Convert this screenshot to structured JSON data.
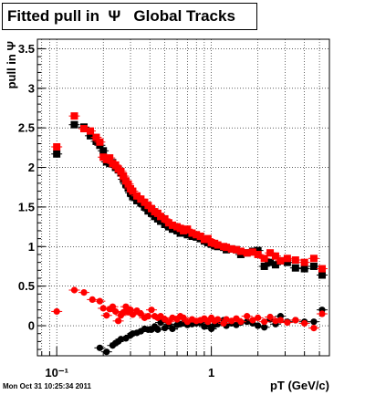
{
  "title": "Fitted pull in  Ψ   Global Tracks",
  "timestamp": "Mon Oct 31 10:25:34 2011",
  "chart_data": {
    "type": "scatter",
    "title": "Fitted pull in  Ψ   Global Tracks",
    "xlabel": "pT (GeV/c)",
    "ylabel": "pull in Ψ",
    "xscale": "log",
    "xlim": [
      0.075,
      5.8
    ],
    "ylim": [
      -0.38,
      3.62
    ],
    "grid": true,
    "xticks_major": [
      {
        "v": 0.1,
        "label": "10⁻¹"
      },
      {
        "v": 1,
        "label": "1"
      }
    ],
    "yticks_major": [
      0,
      0.5,
      1,
      1.5,
      2,
      2.5,
      3,
      3.5
    ],
    "ytick_labels": [
      "0",
      "0.5",
      "1",
      "1.5",
      "2",
      "2.5",
      "3",
      "3.5"
    ],
    "series": [
      {
        "color": "#000000",
        "marker": "square",
        "points": [
          [
            0.1,
            2.17
          ],
          [
            0.13,
            2.54
          ],
          [
            0.15,
            2.51
          ],
          [
            0.165,
            2.4
          ],
          [
            0.18,
            2.33
          ],
          [
            0.19,
            2.28
          ],
          [
            0.2,
            2.21
          ],
          [
            0.21,
            2.07
          ],
          [
            0.22,
            2.05
          ],
          [
            0.23,
            2.06
          ],
          [
            0.24,
            2.0
          ],
          [
            0.25,
            1.97
          ],
          [
            0.26,
            1.93
          ],
          [
            0.27,
            1.85
          ],
          [
            0.28,
            1.79
          ],
          [
            0.29,
            1.74
          ],
          [
            0.3,
            1.68
          ],
          [
            0.31,
            1.63
          ],
          [
            0.33,
            1.58
          ],
          [
            0.35,
            1.55
          ],
          [
            0.37,
            1.5
          ],
          [
            0.39,
            1.45
          ],
          [
            0.41,
            1.42
          ],
          [
            0.43,
            1.38
          ],
          [
            0.45,
            1.35
          ],
          [
            0.47,
            1.32
          ],
          [
            0.5,
            1.28
          ],
          [
            0.53,
            1.25
          ],
          [
            0.56,
            1.22
          ],
          [
            0.6,
            1.2
          ],
          [
            0.63,
            1.17
          ],
          [
            0.66,
            1.2
          ],
          [
            0.7,
            1.15
          ],
          [
            0.75,
            1.13
          ],
          [
            0.8,
            1.12
          ],
          [
            0.85,
            1.1
          ],
          [
            0.9,
            1.07
          ],
          [
            0.95,
            1.05
          ],
          [
            1.0,
            1.03
          ],
          [
            1.05,
            1.01
          ],
          [
            1.1,
            1.0
          ],
          [
            1.2,
            0.99
          ],
          [
            1.25,
            0.96
          ],
          [
            1.35,
            0.97
          ],
          [
            1.45,
            0.96
          ],
          [
            1.55,
            0.9
          ],
          [
            1.7,
            0.92
          ],
          [
            1.85,
            0.94
          ],
          [
            2.0,
            0.95
          ],
          [
            2.2,
            0.75
          ],
          [
            2.4,
            0.8
          ],
          [
            2.6,
            0.77
          ],
          [
            2.8,
            0.82
          ],
          [
            3.1,
            0.8
          ],
          [
            3.5,
            0.73
          ],
          [
            4.0,
            0.72
          ],
          [
            4.6,
            0.75
          ],
          [
            5.2,
            0.64
          ]
        ]
      },
      {
        "color": "#000000",
        "marker": "circle",
        "points": [
          [
            0.19,
            -0.28
          ],
          [
            0.21,
            -0.33
          ],
          [
            0.23,
            -0.25
          ],
          [
            0.24,
            -0.22
          ],
          [
            0.25,
            -0.2
          ],
          [
            0.26,
            -0.17
          ],
          [
            0.28,
            -0.16
          ],
          [
            0.3,
            -0.12
          ],
          [
            0.31,
            -0.1
          ],
          [
            0.33,
            -0.09
          ],
          [
            0.35,
            -0.07
          ],
          [
            0.37,
            -0.04
          ],
          [
            0.39,
            -0.05
          ],
          [
            0.41,
            -0.05
          ],
          [
            0.43,
            -0.01
          ],
          [
            0.45,
            -0.05
          ],
          [
            0.47,
            0.04
          ],
          [
            0.5,
            -0.03
          ],
          [
            0.53,
            0.02
          ],
          [
            0.56,
            -0.04
          ],
          [
            0.6,
            0.01
          ],
          [
            0.63,
            0.02
          ],
          [
            0.66,
            0.03
          ],
          [
            0.7,
            0.01
          ],
          [
            0.75,
            0.02
          ],
          [
            0.8,
            0.03
          ],
          [
            0.85,
            0.04
          ],
          [
            0.9,
            -0.01
          ],
          [
            0.95,
            0.01
          ],
          [
            1.0,
            -0.04
          ],
          [
            1.05,
            0.01
          ],
          [
            1.1,
            0.02
          ],
          [
            1.2,
            0.07
          ],
          [
            1.25,
            0.0
          ],
          [
            1.35,
            0.03
          ],
          [
            1.45,
            0.01
          ],
          [
            1.55,
            0.04
          ],
          [
            1.7,
            0.05
          ],
          [
            1.85,
            0.03
          ],
          [
            2.0,
            0.0
          ],
          [
            2.2,
            -0.02
          ],
          [
            2.4,
            0.08
          ],
          [
            2.6,
            0.02
          ],
          [
            2.8,
            0.12
          ],
          [
            3.1,
            0.05
          ],
          [
            3.5,
            0.07
          ],
          [
            4.0,
            0.05
          ],
          [
            4.6,
            0.05
          ],
          [
            5.2,
            0.2
          ]
        ]
      },
      {
        "color": "#ff0000",
        "marker": "square",
        "points": [
          [
            0.1,
            2.26
          ],
          [
            0.13,
            2.65
          ],
          [
            0.15,
            2.49
          ],
          [
            0.165,
            2.46
          ],
          [
            0.18,
            2.38
          ],
          [
            0.19,
            2.32
          ],
          [
            0.2,
            2.13
          ],
          [
            0.21,
            2.1
          ],
          [
            0.22,
            2.12
          ],
          [
            0.23,
            2.05
          ],
          [
            0.24,
            2.03
          ],
          [
            0.25,
            1.98
          ],
          [
            0.26,
            1.95
          ],
          [
            0.27,
            1.89
          ],
          [
            0.28,
            1.83
          ],
          [
            0.29,
            1.79
          ],
          [
            0.3,
            1.73
          ],
          [
            0.31,
            1.7
          ],
          [
            0.33,
            1.64
          ],
          [
            0.35,
            1.6
          ],
          [
            0.37,
            1.56
          ],
          [
            0.39,
            1.52
          ],
          [
            0.41,
            1.48
          ],
          [
            0.43,
            1.44
          ],
          [
            0.45,
            1.42
          ],
          [
            0.47,
            1.38
          ],
          [
            0.5,
            1.35
          ],
          [
            0.53,
            1.3
          ],
          [
            0.56,
            1.27
          ],
          [
            0.6,
            1.25
          ],
          [
            0.63,
            1.23
          ],
          [
            0.66,
            1.2
          ],
          [
            0.7,
            1.22
          ],
          [
            0.75,
            1.17
          ],
          [
            0.8,
            1.15
          ],
          [
            0.85,
            1.13
          ],
          [
            0.9,
            1.09
          ],
          [
            0.95,
            1.1
          ],
          [
            1.0,
            1.05
          ],
          [
            1.05,
            1.04
          ],
          [
            1.1,
            1.02
          ],
          [
            1.2,
            1.0
          ],
          [
            1.25,
            0.99
          ],
          [
            1.35,
            0.97
          ],
          [
            1.45,
            0.96
          ],
          [
            1.55,
            0.94
          ],
          [
            1.7,
            0.92
          ],
          [
            1.85,
            0.93
          ],
          [
            2.0,
            0.9
          ],
          [
            2.2,
            0.85
          ],
          [
            2.4,
            0.92
          ],
          [
            2.6,
            0.88
          ],
          [
            2.8,
            0.82
          ],
          [
            3.1,
            0.85
          ],
          [
            3.5,
            0.83
          ],
          [
            4.0,
            0.8
          ],
          [
            4.6,
            0.85
          ],
          [
            5.2,
            0.72
          ]
        ]
      },
      {
        "color": "#ff0000",
        "marker": "circle",
        "points": [
          [
            0.1,
            0.18
          ],
          [
            0.13,
            0.45
          ],
          [
            0.15,
            0.42
          ],
          [
            0.17,
            0.33
          ],
          [
            0.19,
            0.31
          ],
          [
            0.2,
            0.22
          ],
          [
            0.21,
            0.13
          ],
          [
            0.22,
            0.21
          ],
          [
            0.23,
            0.24
          ],
          [
            0.24,
            0.18
          ],
          [
            0.25,
            0.06
          ],
          [
            0.26,
            0.13
          ],
          [
            0.27,
            0.17
          ],
          [
            0.28,
            0.24
          ],
          [
            0.29,
            0.17
          ],
          [
            0.3,
            0.2
          ],
          [
            0.31,
            0.14
          ],
          [
            0.33,
            0.19
          ],
          [
            0.35,
            0.15
          ],
          [
            0.37,
            0.1
          ],
          [
            0.39,
            0.12
          ],
          [
            0.41,
            0.2
          ],
          [
            0.43,
            0.12
          ],
          [
            0.45,
            0.1
          ],
          [
            0.47,
            0.12
          ],
          [
            0.5,
            0.08
          ],
          [
            0.53,
            0.05
          ],
          [
            0.56,
            0.1
          ],
          [
            0.6,
            0.08
          ],
          [
            0.63,
            0.12
          ],
          [
            0.66,
            0.1
          ],
          [
            0.7,
            0.05
          ],
          [
            0.75,
            0.08
          ],
          [
            0.8,
            0.06
          ],
          [
            0.85,
            0.07
          ],
          [
            0.9,
            0.09
          ],
          [
            0.95,
            0.05
          ],
          [
            1.0,
            0.1
          ],
          [
            1.05,
            0.06
          ],
          [
            1.1,
            0.08
          ],
          [
            1.2,
            0.03
          ],
          [
            1.25,
            0.08
          ],
          [
            1.35,
            0.06
          ],
          [
            1.45,
            0.09
          ],
          [
            1.55,
            0.05
          ],
          [
            1.7,
            0.12
          ],
          [
            1.85,
            0.07
          ],
          [
            2.0,
            0.1
          ],
          [
            2.2,
            0.05
          ],
          [
            2.4,
            0.11
          ],
          [
            2.6,
            0.06
          ],
          [
            2.8,
            0.07
          ],
          [
            3.1,
            0.04
          ],
          [
            3.5,
            0.07
          ],
          [
            4.0,
            0.03
          ],
          [
            4.6,
            -0.03
          ],
          [
            5.2,
            0.15
          ]
        ]
      }
    ]
  }
}
